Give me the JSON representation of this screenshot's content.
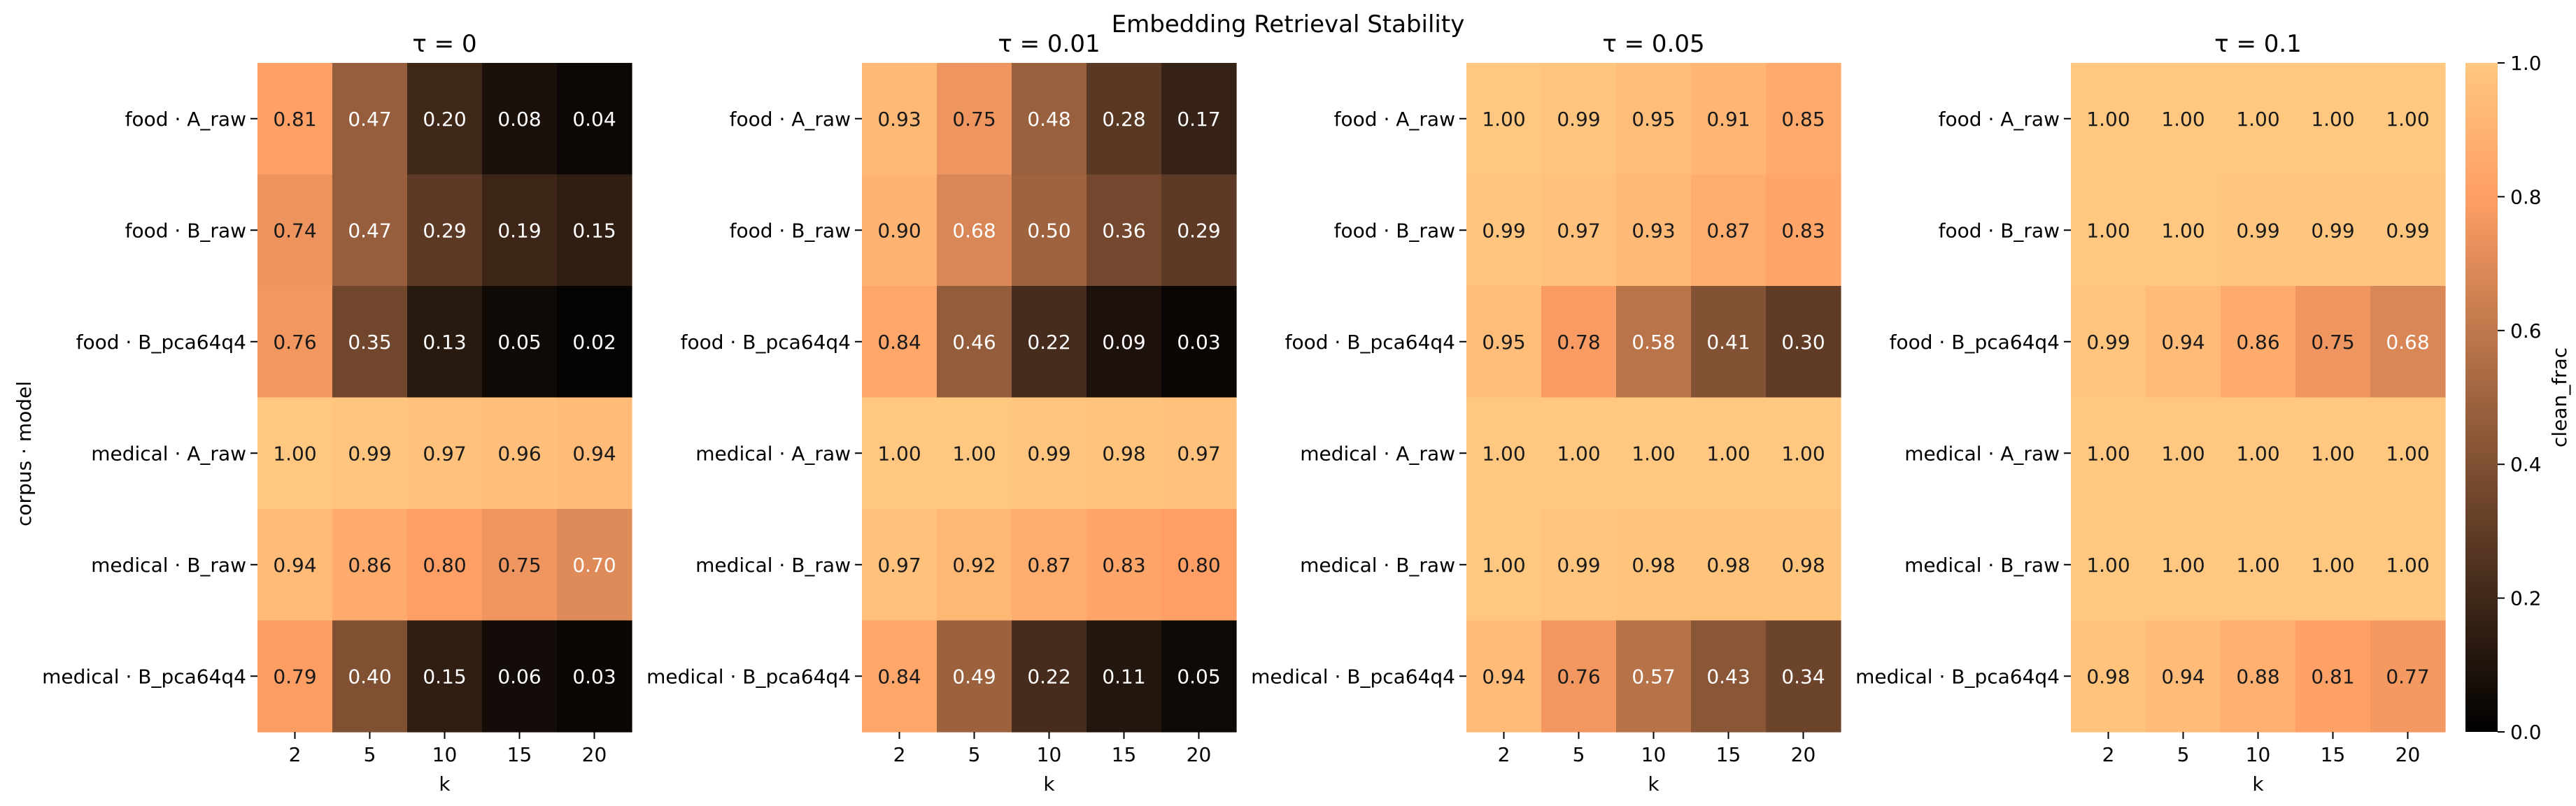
{
  "chart_data": {
    "type": "heatmap",
    "title": "Embedding Retrieval Stability",
    "ylabel": "corpus · model",
    "xlabel": "k",
    "x_categories": [
      "2",
      "5",
      "10",
      "15",
      "20"
    ],
    "y_categories": [
      "food · A_raw",
      "food · B_raw",
      "food · B_pca64q4",
      "medical · A_raw",
      "medical · B_raw",
      "medical · B_pca64q4"
    ],
    "colorbar": {
      "label": "clean_frac",
      "range": [
        0.0,
        1.0
      ],
      "ticks": [
        "0.0",
        "0.2",
        "0.4",
        "0.6",
        "0.8",
        "1.0"
      ],
      "colormap": "copper"
    },
    "panels": [
      {
        "title": "τ = 0",
        "values": [
          [
            0.81,
            0.47,
            0.2,
            0.08,
            0.04
          ],
          [
            0.74,
            0.47,
            0.29,
            0.19,
            0.15
          ],
          [
            0.76,
            0.35,
            0.13,
            0.05,
            0.02
          ],
          [
            1.0,
            0.99,
            0.97,
            0.96,
            0.94
          ],
          [
            0.94,
            0.86,
            0.8,
            0.75,
            0.7
          ],
          [
            0.79,
            0.4,
            0.15,
            0.06,
            0.03
          ]
        ]
      },
      {
        "title": "τ = 0.01",
        "values": [
          [
            0.93,
            0.75,
            0.48,
            0.28,
            0.17
          ],
          [
            0.9,
            0.68,
            0.5,
            0.36,
            0.29
          ],
          [
            0.84,
            0.46,
            0.22,
            0.09,
            0.03
          ],
          [
            1.0,
            1.0,
            0.99,
            0.98,
            0.97
          ],
          [
            0.97,
            0.92,
            0.87,
            0.83,
            0.8
          ],
          [
            0.84,
            0.49,
            0.22,
            0.11,
            0.05
          ]
        ]
      },
      {
        "title": "τ = 0.05",
        "values": [
          [
            1.0,
            0.99,
            0.95,
            0.91,
            0.85
          ],
          [
            0.99,
            0.97,
            0.93,
            0.87,
            0.83
          ],
          [
            0.95,
            0.78,
            0.58,
            0.41,
            0.3
          ],
          [
            1.0,
            1.0,
            1.0,
            1.0,
            1.0
          ],
          [
            1.0,
            0.99,
            0.98,
            0.98,
            0.98
          ],
          [
            0.94,
            0.76,
            0.57,
            0.43,
            0.34
          ]
        ]
      },
      {
        "title": "τ = 0.1",
        "values": [
          [
            1.0,
            1.0,
            1.0,
            1.0,
            1.0
          ],
          [
            1.0,
            1.0,
            0.99,
            0.99,
            0.99
          ],
          [
            0.99,
            0.94,
            0.86,
            0.75,
            0.68
          ],
          [
            1.0,
            1.0,
            1.0,
            1.0,
            1.0
          ],
          [
            1.0,
            1.0,
            1.0,
            1.0,
            1.0
          ],
          [
            0.98,
            0.94,
            0.88,
            0.81,
            0.77
          ]
        ]
      }
    ]
  }
}
